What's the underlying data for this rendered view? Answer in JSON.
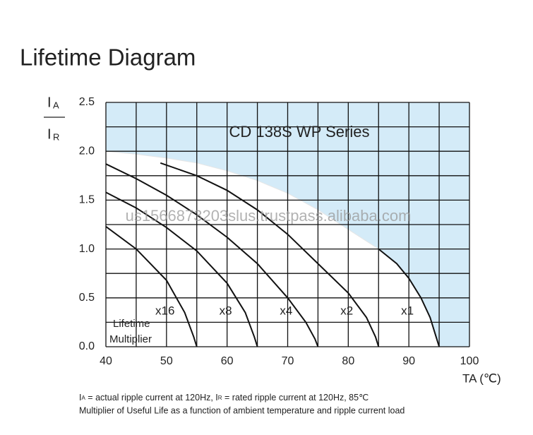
{
  "chart_data": {
    "type": "line",
    "title": "Lifetime Diagram",
    "subtitle": "CD 138S WP Series",
    "watermark": "us1566873203slus.trustpass.alibaba.com",
    "y_label": {
      "numerator": {
        "main": "I",
        "sub": "A"
      },
      "denominator": {
        "main": "I",
        "sub": "R"
      }
    },
    "x_label": "TA (℃)",
    "annotation": [
      "Lifetime",
      "Multiplier"
    ],
    "footnotes": [
      [
        "I",
        "A",
        " = actual ripple current at 120Hz, I",
        "R",
        " = rated ripple current at 120Hz, 85℃"
      ],
      [
        "Multiplier of Useful Life as a function of ambient temperature and ripple current load"
      ]
    ],
    "xlim": [
      40,
      100
    ],
    "ylim": [
      0,
      2.5
    ],
    "xticks": [
      40,
      50,
      60,
      70,
      80,
      90,
      100
    ],
    "yticks": [
      {
        "value": 0,
        "label": "0.0"
      },
      {
        "value": 0.5,
        "label": "0.5"
      },
      {
        "value": 1,
        "label": "1.0"
      },
      {
        "value": 1.5,
        "label": "1.5"
      },
      {
        "value": 2,
        "label": "2.0"
      },
      {
        "value": 2.5,
        "label": "2.5"
      }
    ],
    "xgrid": [
      40,
      45,
      50,
      55,
      60,
      65,
      70,
      75,
      80,
      85,
      90,
      95,
      100
    ],
    "ygrid": [
      0,
      0.25,
      0.5,
      0.75,
      1,
      1.25,
      1.5,
      1.75,
      2,
      2.25,
      2.5
    ],
    "grid": true,
    "region": {
      "color": "#d4ebf8",
      "x": [
        40,
        45,
        50,
        55,
        60,
        65,
        70,
        75,
        80,
        85,
        88,
        90,
        92,
        93.5,
        94.5,
        95
      ],
      "y": [
        2.0,
        1.97,
        1.93,
        1.88,
        1.8,
        1.7,
        1.57,
        1.4,
        1.2,
        1.0,
        0.85,
        0.7,
        0.5,
        0.3,
        0.1,
        0
      ]
    },
    "series": [
      {
        "name": "x16",
        "color": "#111111",
        "x": [
          40,
          45,
          50,
          53,
          54.5,
          55
        ],
        "values": [
          1.23,
          1.0,
          0.68,
          0.35,
          0.1,
          0
        ]
      },
      {
        "name": "x8",
        "color": "#111111",
        "x": [
          40,
          45,
          50,
          55,
          60,
          63,
          64.5,
          65
        ],
        "values": [
          1.58,
          1.42,
          1.22,
          0.98,
          0.65,
          0.35,
          0.1,
          0
        ]
      },
      {
        "name": "x4",
        "color": "#111111",
        "x": [
          40,
          45,
          50,
          55,
          60,
          65,
          70,
          73,
          74.5,
          75
        ],
        "values": [
          1.87,
          1.72,
          1.55,
          1.35,
          1.12,
          0.85,
          0.5,
          0.25,
          0.08,
          0
        ]
      },
      {
        "name": "x2",
        "color": "#111111",
        "x": [
          49,
          55,
          60,
          65,
          70,
          75,
          80,
          83,
          84.5,
          85
        ],
        "values": [
          1.88,
          1.75,
          1.6,
          1.4,
          1.15,
          0.85,
          0.55,
          0.3,
          0.1,
          0
        ]
      },
      {
        "name": "x1",
        "color": "#111111",
        "x": [
          85,
          88,
          90,
          92,
          93.5,
          94.5,
          95
        ],
        "values": [
          1.0,
          0.85,
          0.7,
          0.5,
          0.3,
          0.1,
          0
        ]
      }
    ]
  }
}
